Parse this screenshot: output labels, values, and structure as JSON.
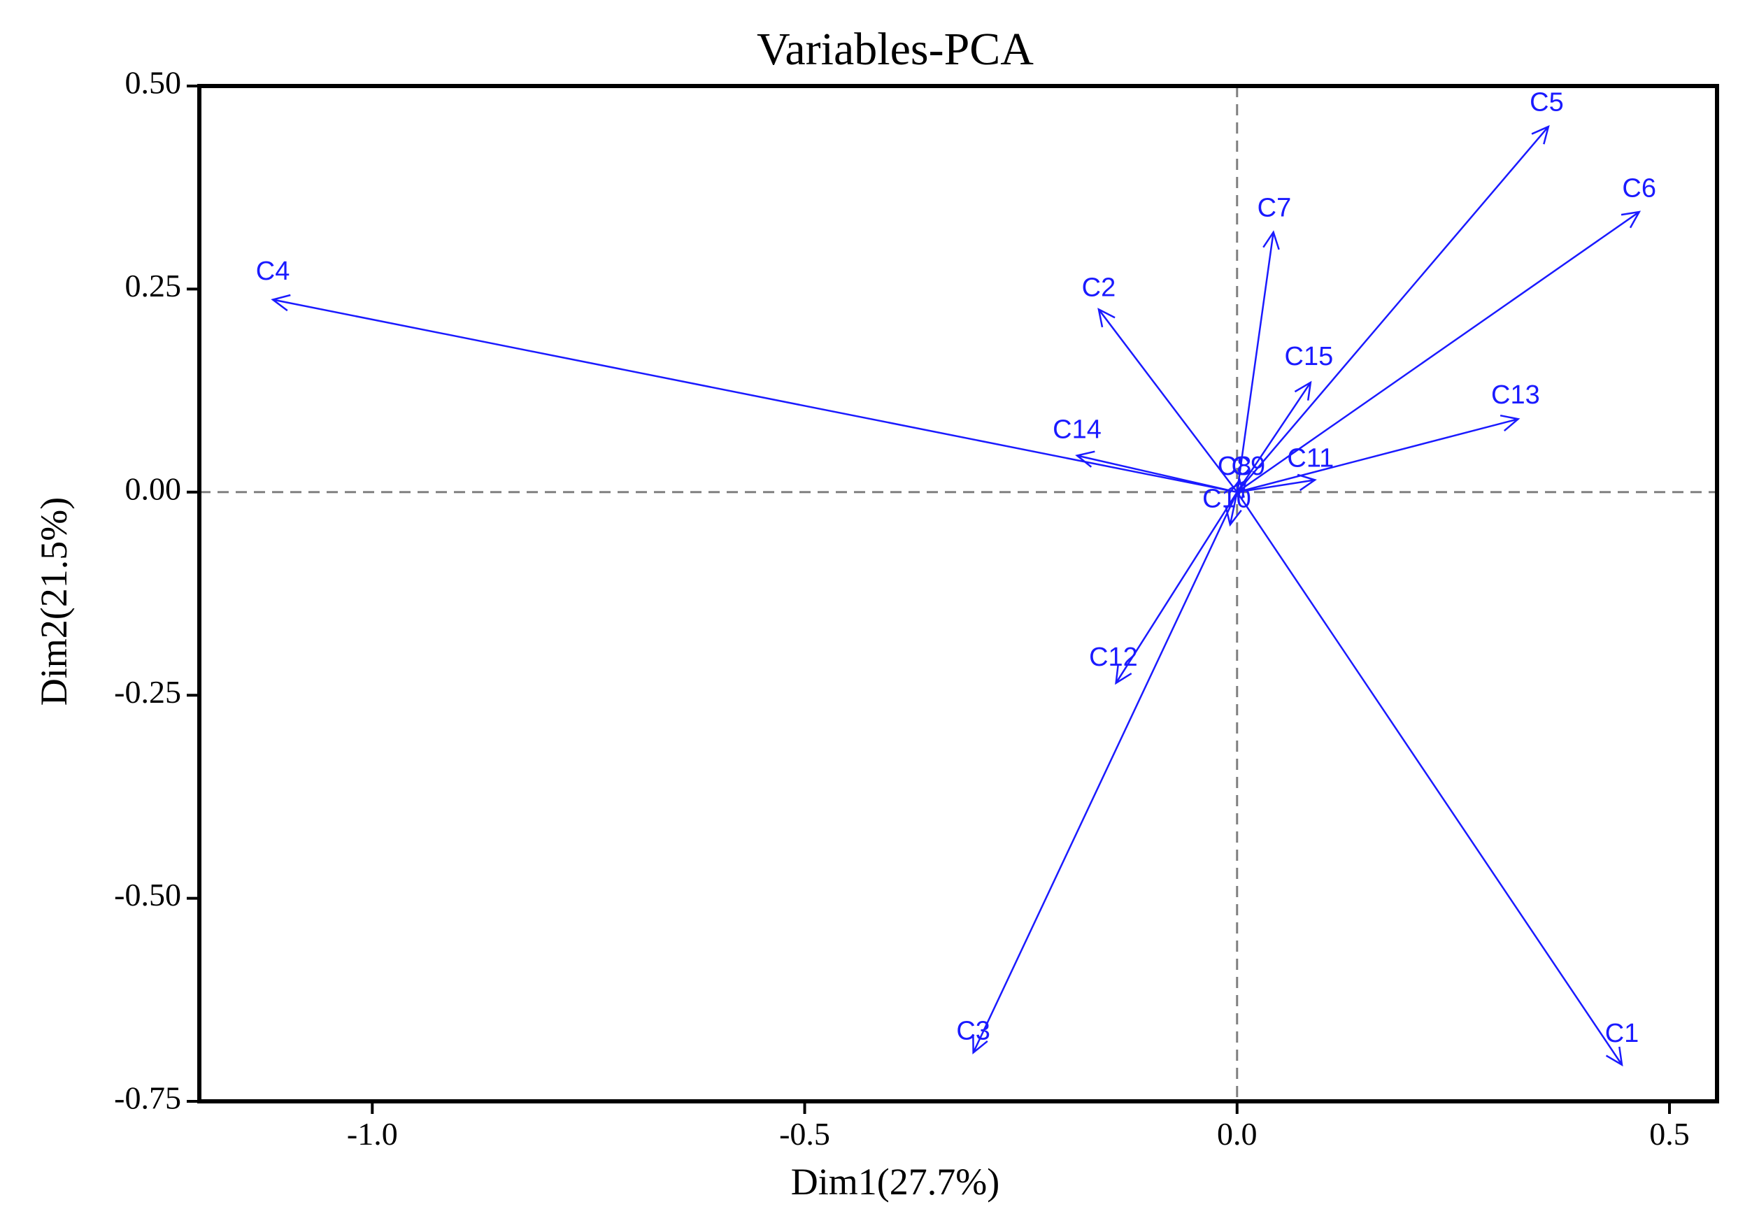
{
  "chart_data": {
    "type": "biplot",
    "title": "Variables-PCA",
    "xlabel": "Dim1(27.7%)",
    "ylabel": "Dim2(21.5%)",
    "xlim": [
      -1.2,
      0.555
    ],
    "ylim": [
      -0.75,
      0.5
    ],
    "xticks": [
      -1.0,
      -0.5,
      0.0,
      0.5
    ],
    "xtick_labels": [
      "-1.0",
      "-0.5",
      "0.0",
      "0.5"
    ],
    "yticks": [
      0.5,
      0.25,
      0.0,
      -0.25,
      -0.5,
      -0.75
    ],
    "ytick_labels": [
      "0.50",
      "0.25",
      "0.00",
      "-0.25",
      "-0.50",
      "-0.75"
    ],
    "reference_lines": {
      "x": 0,
      "y": 0,
      "style": "dashed"
    },
    "colors": {
      "arrow": "#1a1aff",
      "label": "#1a1aff",
      "axis": "#000000",
      "reference": "#808080"
    },
    "variables": [
      {
        "name": "C1",
        "x": 0.445,
        "y": -0.705
      },
      {
        "name": "C2",
        "x": -0.16,
        "y": 0.225
      },
      {
        "name": "C3",
        "x": -0.305,
        "y": -0.69
      },
      {
        "name": "C4",
        "x": -1.115,
        "y": 0.237
      },
      {
        "name": "C5",
        "x": 0.36,
        "y": 0.45
      },
      {
        "name": "C6",
        "x": 0.465,
        "y": 0.345
      },
      {
        "name": "C7",
        "x": 0.042,
        "y": 0.32
      },
      {
        "name": "C8",
        "x": 0.003,
        "y": 0.015
      },
      {
        "name": "C9",
        "x": 0.01,
        "y": 0.014
      },
      {
        "name": "C10",
        "x": -0.008,
        "y": -0.04
      },
      {
        "name": "C11",
        "x": 0.09,
        "y": 0.015
      },
      {
        "name": "C12",
        "x": -0.14,
        "y": -0.235
      },
      {
        "name": "C13",
        "x": 0.325,
        "y": 0.09
      },
      {
        "name": "C14",
        "x": -0.185,
        "y": 0.045
      },
      {
        "name": "C15",
        "x": 0.085,
        "y": 0.135
      }
    ],
    "variable_labels": {
      "C1": {
        "text": "C1",
        "x": 0.445,
        "y": -0.668
      },
      "C2": {
        "text": "C2",
        "x": -0.16,
        "y": 0.25
      },
      "C3": {
        "text": "C3",
        "x": -0.305,
        "y": -0.665
      },
      "C4": {
        "text": "C4",
        "x": -1.115,
        "y": 0.27
      },
      "C5": {
        "text": "C5",
        "x": 0.358,
        "y": 0.478
      },
      "C6": {
        "text": "C6",
        "x": 0.465,
        "y": 0.372
      },
      "C7": {
        "text": "C7",
        "x": 0.043,
        "y": 0.348
      },
      "C8": {
        "text": "C8",
        "x": -0.003,
        "y": 0.03
      },
      "C9": {
        "text": "C9",
        "x": 0.013,
        "y": 0.03
      },
      "C10": {
        "text": "C10",
        "x": -0.012,
        "y": -0.01
      },
      "C11": {
        "text": "C11",
        "x": 0.085,
        "y": 0.04
      },
      "C12": {
        "text": "C12",
        "x": -0.143,
        "y": -0.205
      },
      "C13": {
        "text": "C13",
        "x": 0.322,
        "y": 0.118
      },
      "C14": {
        "text": "C14",
        "x": -0.185,
        "y": 0.075
      },
      "C15": {
        "text": "C15",
        "x": 0.083,
        "y": 0.165
      }
    }
  }
}
